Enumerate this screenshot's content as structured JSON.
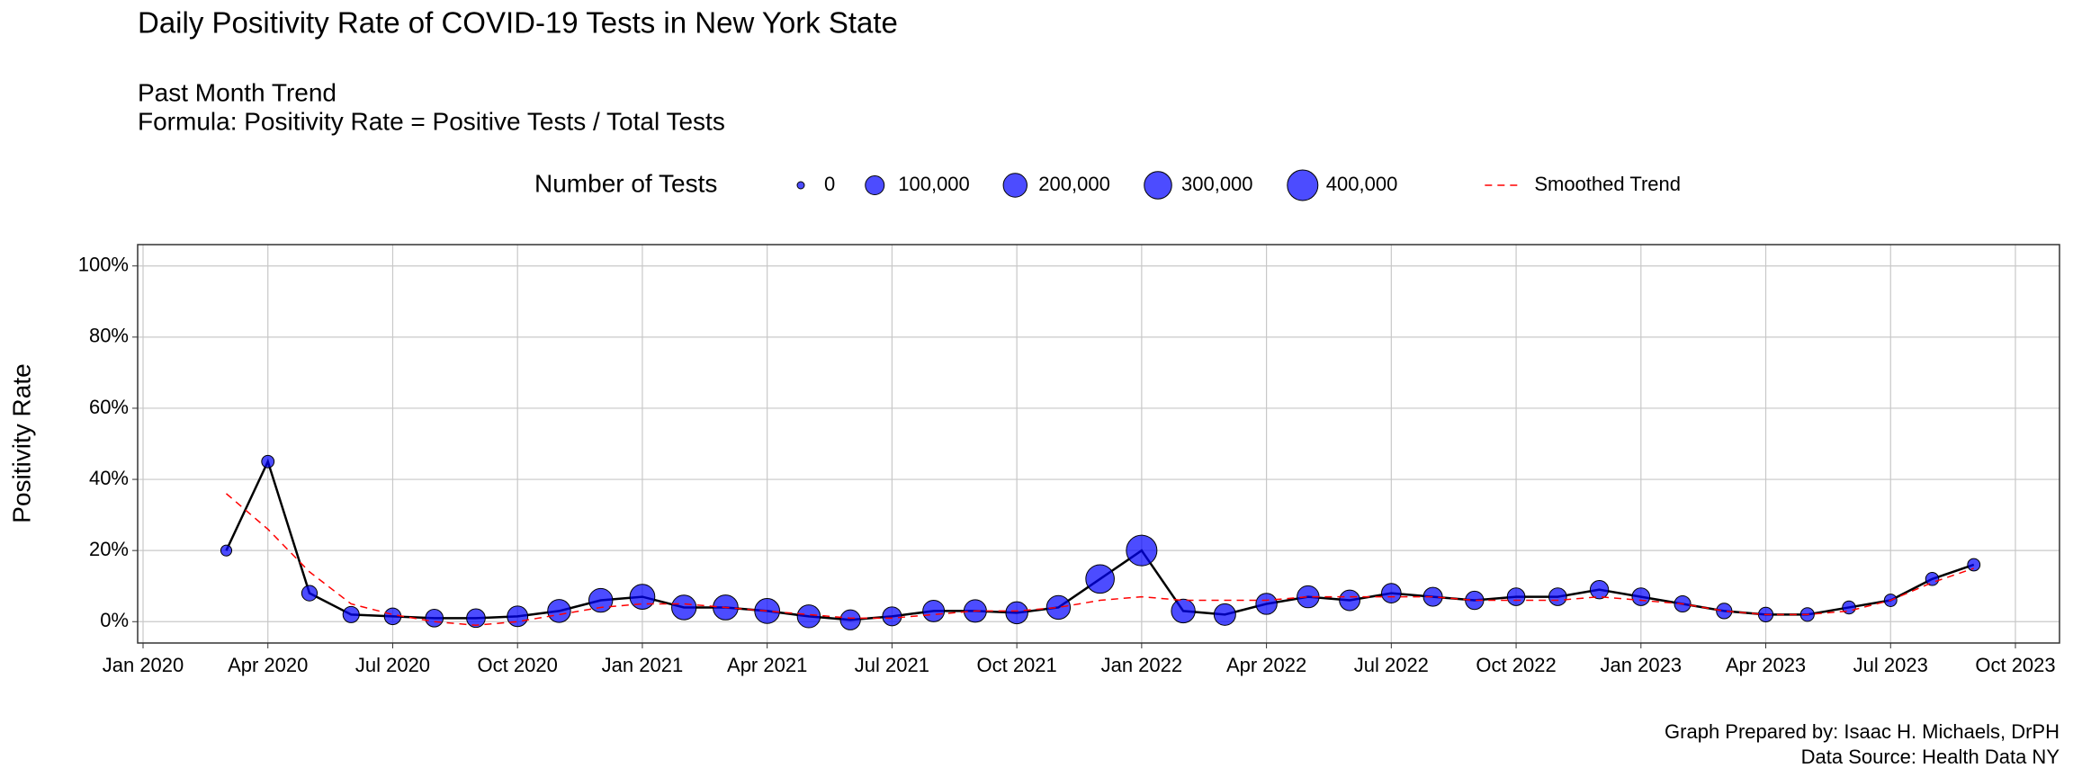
{
  "chart_data": {
    "type": "bubble",
    "title": "Daily Positivity Rate of COVID-19 Tests in New York State",
    "subtitle": [
      "Past Month Trend",
      "Formula: Positivity Rate = Positive Tests / Total Tests"
    ],
    "y_label": "Positivity Rate",
    "size_legend_title": "Number of Tests",
    "size_legend": [
      0,
      {
        "value": 100000,
        "label": "100,000"
      },
      {
        "value": 200000,
        "label": "200,000"
      },
      {
        "value": 300000,
        "label": "300,000"
      },
      {
        "value": 400000,
        "label": "400,000"
      }
    ],
    "caption": [
      "Graph Prepared by: Isaac H. Michaels, DrPH",
      "Data Source: Health Data NY"
    ],
    "x": [
      "2020-03",
      "2020-04",
      "2020-05",
      "2020-06",
      "2020-07",
      "2020-08",
      "2020-09",
      "2020-10",
      "2020-11",
      "2020-12",
      "2021-01",
      "2021-02",
      "2021-03",
      "2021-04",
      "2021-05",
      "2021-06",
      "2021-07",
      "2021-08",
      "2021-09",
      "2021-10",
      "2021-11",
      "2021-12",
      "2022-01",
      "2022-02",
      "2022-03",
      "2022-04",
      "2022-05",
      "2022-06",
      "2022-07",
      "2022-08",
      "2022-09",
      "2022-10",
      "2022-11",
      "2022-12",
      "2023-01",
      "2023-02",
      "2023-03",
      "2023-04",
      "2023-05",
      "2023-06",
      "2023-07",
      "2023-08",
      "2023-09"
    ],
    "series": [
      {
        "name": "Positivity Rate",
        "color": "#0000ff",
        "line_color": "#000000",
        "values": [
          20,
          45,
          8,
          2,
          1.5,
          1,
          1,
          1.5,
          3,
          6,
          7,
          4,
          4,
          3,
          1.5,
          0.5,
          1.5,
          3,
          3,
          2.5,
          4,
          12,
          20,
          3,
          2,
          5,
          7,
          6,
          8,
          7,
          6,
          7,
          7,
          9,
          7,
          5,
          3,
          2,
          2,
          4,
          6,
          12,
          16
        ],
        "sizes": [
          10000,
          20000,
          50000,
          60000,
          65000,
          80000,
          95000,
          130000,
          180000,
          200000,
          230000,
          220000,
          230000,
          230000,
          180000,
          120000,
          100000,
          150000,
          170000,
          160000,
          200000,
          330000,
          400000,
          200000,
          150000,
          140000,
          160000,
          130000,
          110000,
          100000,
          90000,
          80000,
          80000,
          90000,
          80000,
          60000,
          50000,
          40000,
          30000,
          25000,
          20000,
          25000,
          20000
        ]
      },
      {
        "name": "Smoothed Trend",
        "color": "#ff0000",
        "dashed": true,
        "values": [
          36,
          26,
          14,
          5,
          2,
          0,
          -1,
          0,
          2,
          4,
          5,
          5,
          4,
          3,
          2,
          1,
          1,
          2,
          3,
          3,
          4,
          6,
          7,
          6,
          6,
          6,
          7,
          7,
          7,
          7,
          6,
          6,
          6,
          7,
          6,
          5,
          3,
          2,
          2,
          3,
          6,
          11,
          15
        ]
      }
    ],
    "xlim": [
      "2020-01",
      "2023-10"
    ],
    "xticks": [
      {
        "value": "2020-01",
        "label": "Jan 2020"
      },
      {
        "value": "2020-04",
        "label": "Apr 2020"
      },
      {
        "value": "2020-07",
        "label": "Jul 2020"
      },
      {
        "value": "2020-10",
        "label": "Oct 2020"
      },
      {
        "value": "2021-01",
        "label": "Jan 2021"
      },
      {
        "value": "2021-04",
        "label": "Apr 2021"
      },
      {
        "value": "2021-07",
        "label": "Jul 2021"
      },
      {
        "value": "2021-10",
        "label": "Oct 2021"
      },
      {
        "value": "2022-01",
        "label": "Jan 2022"
      },
      {
        "value": "2022-04",
        "label": "Apr 2022"
      },
      {
        "value": "2022-07",
        "label": "Jul 2022"
      },
      {
        "value": "2022-10",
        "label": "Oct 2022"
      },
      {
        "value": "2023-01",
        "label": "Jan 2023"
      },
      {
        "value": "2023-04",
        "label": "Apr 2023"
      },
      {
        "value": "2023-07",
        "label": "Jul 2023"
      },
      {
        "value": "2023-10",
        "label": "Oct 2023"
      }
    ],
    "ylim": [
      -6,
      106
    ],
    "yticks": [
      {
        "value": 0,
        "label": "0%"
      },
      {
        "value": 20,
        "label": "20%"
      },
      {
        "value": 40,
        "label": "40%"
      },
      {
        "value": 60,
        "label": "60%"
      },
      {
        "value": 80,
        "label": "80%"
      },
      {
        "value": 100,
        "label": "100%"
      }
    ],
    "grid": true,
    "legend": "top"
  }
}
